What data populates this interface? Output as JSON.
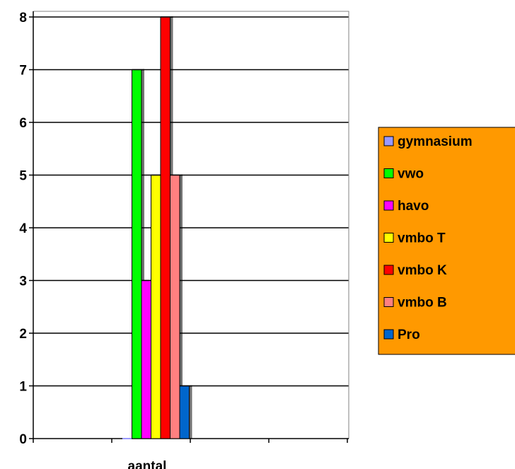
{
  "chart_data": {
    "type": "bar",
    "categories": [
      "aantal"
    ],
    "series": [
      {
        "name": "gymnasium",
        "values": [
          0
        ],
        "color": "#9999ff"
      },
      {
        "name": "vwo",
        "values": [
          7
        ],
        "color": "#00ff00"
      },
      {
        "name": "havo",
        "values": [
          3
        ],
        "color": "#ff00ff"
      },
      {
        "name": "vmbo T",
        "values": [
          5
        ],
        "color": "#ffff00"
      },
      {
        "name": "vmbo K",
        "values": [
          8
        ],
        "color": "#ff0000"
      },
      {
        "name": "vmbo B",
        "values": [
          5
        ],
        "color": "#ff8080"
      },
      {
        "name": "Pro",
        "values": [
          1
        ],
        "color": "#0066cc"
      }
    ],
    "yticks": [
      "0",
      "1",
      "2",
      "3",
      "4",
      "5",
      "6",
      "7",
      "8"
    ],
    "ylim": [
      0,
      8
    ],
    "grid": true,
    "legend_position": "right",
    "legend_background": "#ff9900",
    "plot_border_color": "#808080"
  }
}
